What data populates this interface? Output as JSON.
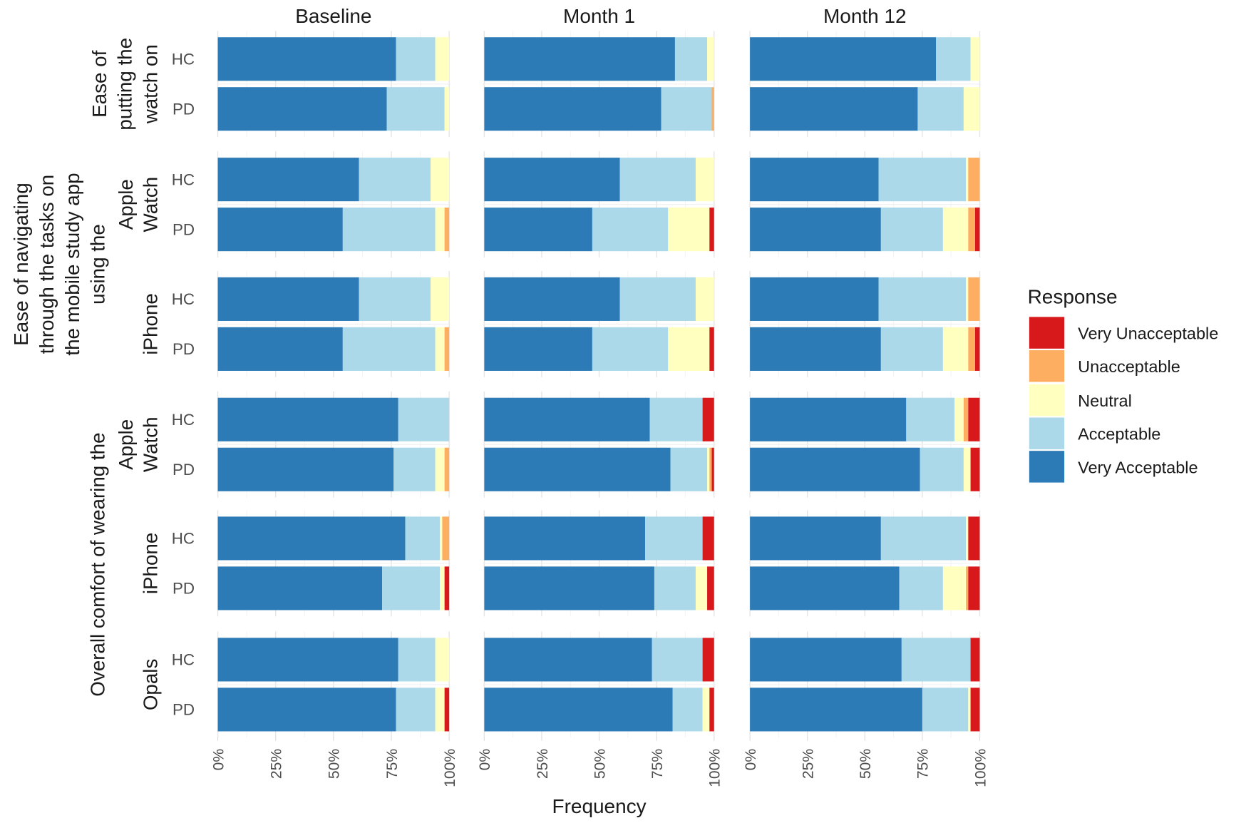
{
  "chart_data": {
    "type": "bar",
    "orientation": "horizontal",
    "stacked": "percent",
    "columns": [
      "Baseline",
      "Month 1",
      "Month 12"
    ],
    "xlabel": "Frequency",
    "ylabel": "",
    "xlim": [
      0,
      100
    ],
    "x_ticks": [
      "0%",
      "25%",
      "50%",
      "75%",
      "100%"
    ],
    "grid": true,
    "legend": {
      "title": "Response",
      "position": "right",
      "entries": [
        "Very Unacceptable",
        "Unacceptable",
        "Neutral",
        "Acceptable",
        "Very Acceptable"
      ]
    },
    "colors": {
      "Very Unacceptable": "#d7191c",
      "Unacceptable": "#fdae61",
      "Neutral": "#ffffbf",
      "Acceptable": "#abd9e9",
      "Very Acceptable": "#2c7bb6"
    },
    "segment_order": [
      "Very Acceptable",
      "Acceptable",
      "Neutral",
      "Unacceptable",
      "Very Unacceptable"
    ],
    "groups": [
      {
        "label_lines": [
          "Ease of",
          "putting the",
          "watch on"
        ],
        "subpanels": [
          {
            "device_lines": [],
            "rows": [
              {
                "subject": "HC",
                "values": [
                  [
                    77,
                    17,
                    6,
                    0,
                    0
                  ],
                  [
                    83,
                    14,
                    3,
                    0,
                    0
                  ],
                  [
                    81,
                    15,
                    4,
                    0,
                    0
                  ]
                ]
              },
              {
                "subject": "PD",
                "values": [
                  [
                    73,
                    25,
                    2,
                    0,
                    0
                  ],
                  [
                    77,
                    22,
                    0,
                    1,
                    0
                  ],
                  [
                    73,
                    20,
                    7,
                    0,
                    0
                  ]
                ]
              }
            ]
          }
        ]
      },
      {
        "label_lines": [
          "Ease of navigating",
          "through the tasks on",
          "the mobile study app",
          "using the"
        ],
        "subpanels": [
          {
            "device_lines": [
              "Apple",
              "Watch"
            ],
            "rows": [
              {
                "subject": "HC",
                "values": [
                  [
                    61,
                    31,
                    8,
                    0,
                    0
                  ],
                  [
                    59,
                    33,
                    8,
                    0,
                    0
                  ],
                  [
                    56,
                    38,
                    1,
                    5,
                    0
                  ]
                ]
              },
              {
                "subject": "PD",
                "values": [
                  [
                    54,
                    40,
                    4,
                    2,
                    0
                  ],
                  [
                    47,
                    33,
                    18,
                    0,
                    2
                  ],
                  [
                    57,
                    27,
                    11,
                    3,
                    2
                  ]
                ]
              }
            ]
          },
          {
            "device_lines": [
              "iPhone"
            ],
            "rows": [
              {
                "subject": "HC",
                "values": [
                  [
                    61,
                    31,
                    8,
                    0,
                    0
                  ],
                  [
                    59,
                    33,
                    8,
                    0,
                    0
                  ],
                  [
                    56,
                    38,
                    1,
                    5,
                    0
                  ]
                ]
              },
              {
                "subject": "PD",
                "values": [
                  [
                    54,
                    40,
                    4,
                    2,
                    0
                  ],
                  [
                    47,
                    33,
                    18,
                    0,
                    2
                  ],
                  [
                    57,
                    27,
                    11,
                    3,
                    2
                  ]
                ]
              }
            ]
          }
        ]
      },
      {
        "label_lines": [
          "Overall comfort of wearing the"
        ],
        "subpanels": [
          {
            "device_lines": [
              "Apple",
              "Watch"
            ],
            "rows": [
              {
                "subject": "HC",
                "values": [
                  [
                    78,
                    22,
                    0,
                    0,
                    0
                  ],
                  [
                    72,
                    23,
                    0,
                    0,
                    5
                  ],
                  [
                    68,
                    21,
                    4,
                    2,
                    5
                  ]
                ]
              },
              {
                "subject": "PD",
                "values": [
                  [
                    76,
                    18,
                    4,
                    2,
                    0
                  ],
                  [
                    81,
                    16,
                    1,
                    1,
                    1
                  ],
                  [
                    74,
                    19,
                    3,
                    0,
                    4
                  ]
                ]
              }
            ]
          },
          {
            "device_lines": [
              "iPhone"
            ],
            "rows": [
              {
                "subject": "HC",
                "values": [
                  [
                    81,
                    15,
                    1,
                    3,
                    0
                  ],
                  [
                    70,
                    25,
                    0,
                    0,
                    5
                  ],
                  [
                    57,
                    37,
                    1,
                    0,
                    5
                  ]
                ]
              },
              {
                "subject": "PD",
                "values": [
                  [
                    71,
                    25,
                    2,
                    0,
                    2
                  ],
                  [
                    74,
                    18,
                    5,
                    0,
                    3
                  ],
                  [
                    65,
                    19,
                    10,
                    1,
                    5
                  ]
                ]
              }
            ]
          },
          {
            "device_lines": [
              "Opals"
            ],
            "rows": [
              {
                "subject": "HC",
                "values": [
                  [
                    78,
                    16,
                    6,
                    0,
                    0
                  ],
                  [
                    73,
                    22,
                    0,
                    0,
                    5
                  ],
                  [
                    66,
                    30,
                    0,
                    0,
                    4
                  ]
                ]
              },
              {
                "subject": "PD",
                "values": [
                  [
                    77,
                    17,
                    4,
                    0,
                    2
                  ],
                  [
                    82,
                    13,
                    3,
                    0,
                    2
                  ],
                  [
                    75,
                    20,
                    1,
                    0,
                    4
                  ]
                ]
              }
            ]
          }
        ]
      }
    ]
  }
}
